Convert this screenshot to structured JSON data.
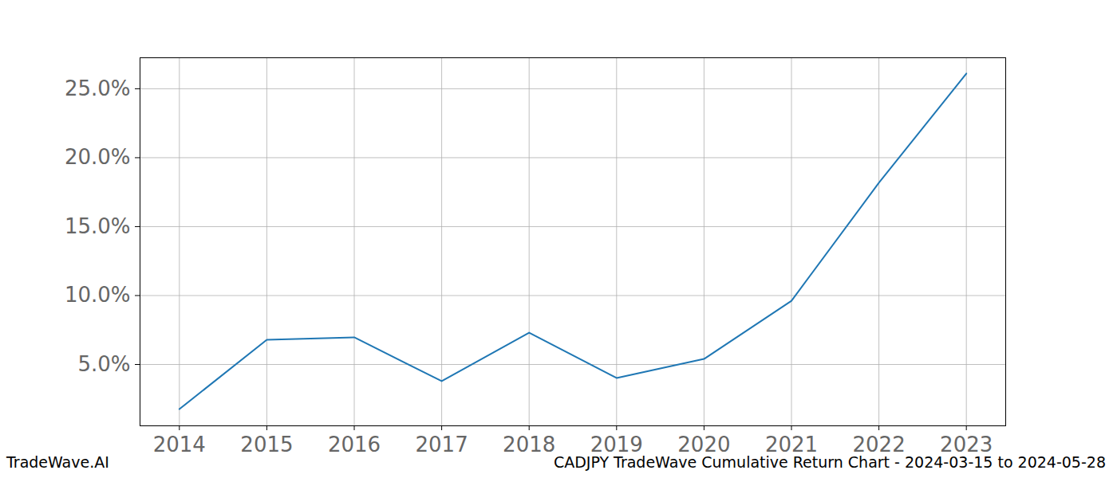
{
  "chart_data": {
    "type": "line",
    "title": "CADJPY TradeWave Cumulative Return Chart - 2024-03-15 to 2024-05-28",
    "annotations": [
      "TradeWave.AI"
    ],
    "x": [
      2014,
      2015,
      2016,
      2017,
      2018,
      2019,
      2020,
      2021,
      2022,
      2023
    ],
    "series": [
      {
        "name": "CADJPY",
        "color": "#1f77b4",
        "values": [
          1.76,
          6.79,
          6.97,
          3.79,
          7.31,
          4.02,
          5.4,
          9.62,
          18.18,
          26.1
        ]
      }
    ],
    "xlim": [
      2013.55,
      2023.45
    ],
    "xticks": [
      2014,
      2015,
      2016,
      2017,
      2018,
      2019,
      2020,
      2021,
      2022,
      2023
    ],
    "ylim": [
      0.55,
      27.25
    ],
    "yticks": [
      {
        "value": 5,
        "label": "5.0%"
      },
      {
        "value": 10,
        "label": "10.0%"
      },
      {
        "value": 15,
        "label": "15.0%"
      },
      {
        "value": 20,
        "label": "20.0%"
      },
      {
        "value": 25,
        "label": "25.0%"
      }
    ],
    "grid": true
  }
}
